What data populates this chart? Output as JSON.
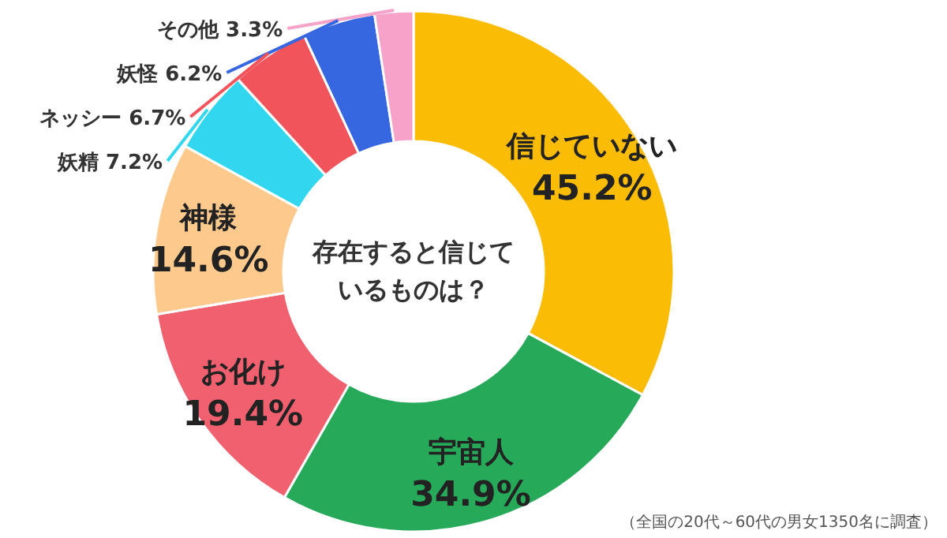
{
  "chart_data": {
    "type": "donut",
    "title": "存在すると信じているものは？",
    "categories": [
      "信じていない",
      "宇宙人",
      "お化け",
      "神様",
      "妖精",
      "ネッシー",
      "妖怪",
      "その他"
    ],
    "values": [
      45.2,
      34.9,
      19.4,
      14.6,
      7.2,
      6.7,
      6.2,
      3.3
    ],
    "value_labels": [
      "45.2%",
      "34.9%",
      "19.4%",
      "14.6%",
      "7.2%",
      "6.7%",
      "6.2%",
      "3.3%"
    ],
    "colors": [
      "#fbbc05",
      "#27a95a",
      "#f0606e",
      "#fdc98c",
      "#33d6ef",
      "#f2545b",
      "#3767e0",
      "#f7a3c9"
    ],
    "annotations": [
      "（全国の20代～60代の男女1350名に調査）"
    ]
  }
}
